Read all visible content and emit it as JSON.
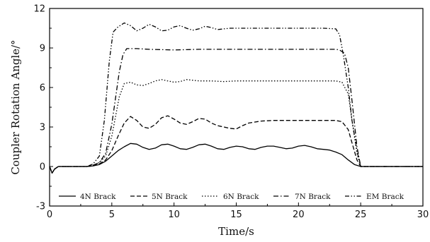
{
  "chart_data": {
    "type": "line",
    "xlabel": "Time/s",
    "ylabel": "Coupler Rotation Angle/°",
    "xlim": [
      0,
      30
    ],
    "ylim": [
      -3,
      12
    ],
    "xticks": [
      0,
      5,
      10,
      15,
      20,
      25,
      30
    ],
    "yticks": [
      -3,
      0,
      3,
      6,
      9,
      12
    ],
    "grid": false,
    "legend_position": "bottom",
    "series": [
      {
        "name": "4N Brack",
        "dash": "solid",
        "x": [
          0,
          0.2,
          0.4,
          0.7,
          1,
          2,
          3,
          3.5,
          4,
          4.5,
          5,
          5.5,
          6,
          6.5,
          7,
          7.5,
          8,
          8.5,
          9,
          9.5,
          10,
          10.5,
          11,
          11.5,
          12,
          12.5,
          13,
          13.5,
          14,
          14.5,
          15,
          15.5,
          16,
          16.5,
          17,
          17.5,
          18,
          18.5,
          19,
          19.5,
          20,
          20.5,
          21,
          21.5,
          22,
          22.5,
          23,
          23.5,
          24,
          24.5,
          25,
          26,
          27,
          28,
          29,
          30
        ],
        "y": [
          0,
          -0.5,
          -0.2,
          0,
          0,
          0,
          0,
          0.05,
          0.15,
          0.4,
          0.8,
          1.2,
          1.5,
          1.75,
          1.7,
          1.45,
          1.3,
          1.4,
          1.65,
          1.7,
          1.55,
          1.35,
          1.3,
          1.45,
          1.65,
          1.7,
          1.55,
          1.35,
          1.3,
          1.45,
          1.55,
          1.5,
          1.35,
          1.3,
          1.45,
          1.55,
          1.55,
          1.45,
          1.35,
          1.4,
          1.55,
          1.6,
          1.5,
          1.35,
          1.3,
          1.25,
          1.1,
          0.9,
          0.5,
          0.15,
          0,
          0,
          0,
          0,
          0,
          0
        ]
      },
      {
        "name": "5N Brack",
        "dash": "dashed",
        "x": [
          0,
          0.2,
          0.4,
          0.7,
          1,
          2,
          3,
          3.5,
          4,
          4.5,
          5,
          5.5,
          6,
          6.5,
          7,
          7.5,
          8,
          8.5,
          9,
          9.5,
          10,
          10.5,
          11,
          11.5,
          12,
          12.5,
          13,
          13.5,
          14,
          14.5,
          15,
          15.5,
          16,
          17,
          18,
          19,
          20,
          21,
          22,
          23,
          23.5,
          24,
          24.3,
          24.7,
          25,
          26,
          27,
          28,
          29,
          30
        ],
        "y": [
          0,
          -0.5,
          -0.2,
          0,
          0,
          0,
          0,
          0.05,
          0.2,
          0.5,
          1.2,
          2.3,
          3.3,
          3.8,
          3.5,
          3.0,
          2.9,
          3.2,
          3.7,
          3.85,
          3.6,
          3.3,
          3.2,
          3.4,
          3.65,
          3.6,
          3.3,
          3.1,
          3.0,
          2.9,
          2.85,
          3.1,
          3.3,
          3.45,
          3.5,
          3.5,
          3.5,
          3.5,
          3.5,
          3.5,
          3.4,
          2.8,
          1.8,
          0.5,
          0,
          0,
          0,
          0,
          0,
          0
        ]
      },
      {
        "name": "6N Brack",
        "dash": "dotted",
        "x": [
          0,
          0.2,
          0.4,
          0.7,
          1,
          2,
          3,
          3.5,
          4,
          4.5,
          5,
          5.3,
          5.6,
          6,
          6.5,
          7,
          7.5,
          8,
          8.5,
          9,
          9.5,
          10,
          10.5,
          11,
          11.5,
          12,
          13,
          14,
          15,
          16,
          17,
          18,
          19,
          20,
          21,
          22,
          23,
          23.5,
          24,
          24.3,
          24.7,
          25,
          26,
          27,
          28,
          29,
          30
        ],
        "y": [
          0,
          -0.5,
          -0.2,
          0,
          0,
          0,
          0,
          0.1,
          0.3,
          0.8,
          2.3,
          3.8,
          5.3,
          6.3,
          6.4,
          6.2,
          6.15,
          6.3,
          6.5,
          6.6,
          6.5,
          6.4,
          6.45,
          6.6,
          6.55,
          6.5,
          6.5,
          6.45,
          6.5,
          6.5,
          6.5,
          6.5,
          6.5,
          6.5,
          6.5,
          6.5,
          6.5,
          6.4,
          5.5,
          3.5,
          1.0,
          0,
          0,
          0,
          0,
          0,
          0
        ]
      },
      {
        "name": "7N Brack",
        "dash": "dash-dot",
        "x": [
          0,
          0.2,
          0.4,
          0.7,
          1,
          2,
          3,
          3.5,
          4,
          4.5,
          5,
          5.3,
          5.6,
          5.9,
          6.2,
          7,
          8,
          10,
          12,
          14,
          16,
          18,
          20,
          22,
          23,
          23.3,
          23.7,
          24,
          24.3,
          24.7,
          25,
          26,
          27,
          28,
          29,
          30
        ],
        "y": [
          0,
          -0.5,
          -0.2,
          0,
          0,
          0,
          0,
          0.1,
          0.3,
          1.0,
          3.2,
          5.2,
          7.2,
          8.5,
          8.95,
          8.95,
          8.9,
          8.85,
          8.9,
          8.9,
          8.9,
          8.9,
          8.9,
          8.9,
          8.9,
          8.85,
          8.6,
          7.5,
          5.0,
          1.5,
          0,
          0,
          0,
          0,
          0,
          0
        ]
      },
      {
        "name": "EM Brack",
        "dash": "dash-dot-dot",
        "x": [
          0,
          0.2,
          0.4,
          0.7,
          1,
          2,
          3,
          3.5,
          4,
          4.4,
          4.8,
          5.1,
          5.5,
          6,
          6.5,
          7,
          7.5,
          8,
          8.5,
          9,
          9.5,
          10,
          10.5,
          11,
          11.5,
          12,
          12.5,
          13,
          13.5,
          14,
          14.5,
          15,
          16,
          17,
          18,
          19,
          20,
          21,
          22,
          23,
          23.3,
          23.6,
          24,
          24.3,
          24.7,
          25,
          26,
          27,
          28,
          29,
          30
        ],
        "y": [
          0,
          -0.5,
          -0.2,
          0,
          0,
          0,
          0,
          0.2,
          0.8,
          3.5,
          8.0,
          10.2,
          10.6,
          10.9,
          10.7,
          10.3,
          10.5,
          10.8,
          10.6,
          10.3,
          10.35,
          10.6,
          10.7,
          10.5,
          10.35,
          10.45,
          10.65,
          10.55,
          10.4,
          10.45,
          10.5,
          10.5,
          10.5,
          10.5,
          10.5,
          10.5,
          10.5,
          10.5,
          10.5,
          10.45,
          10.0,
          8.5,
          6.0,
          3.5,
          1.2,
          0,
          0,
          0,
          0,
          0,
          0
        ]
      }
    ]
  }
}
